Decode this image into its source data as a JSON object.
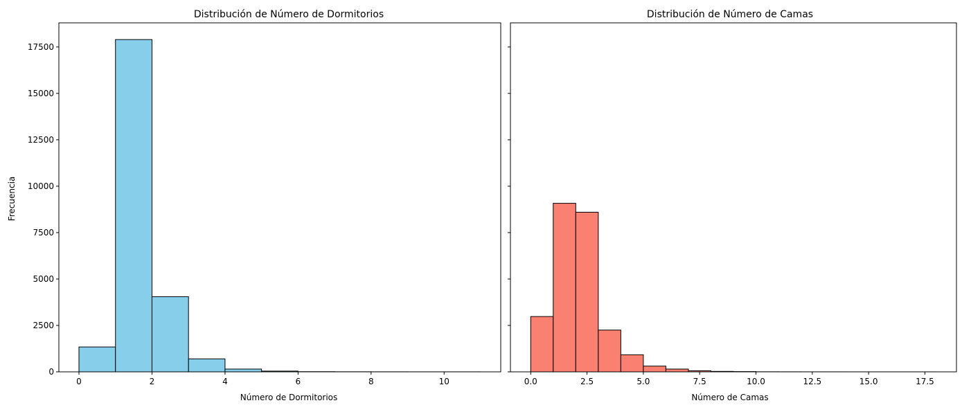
{
  "chart_data": [
    {
      "type": "bar",
      "title": "Distribución de Número de Dormitorios",
      "xlabel": "Número de Dormitorios",
      "ylabel": "Frecuencia",
      "color": "#87CEEB",
      "edge_color": "#000000",
      "xlim": [
        -0.55,
        11.55
      ],
      "ylim": [
        0,
        18800
      ],
      "xticks": [
        0,
        2,
        4,
        6,
        8,
        10
      ],
      "xtick_labels": [
        "0",
        "2",
        "4",
        "6",
        "8",
        "10"
      ],
      "yticks": [
        0,
        2500,
        5000,
        7500,
        10000,
        12500,
        15000,
        17500
      ],
      "ytick_labels": [
        "0",
        "2500",
        "5000",
        "7500",
        "10000",
        "12500",
        "15000",
        "17500"
      ],
      "bins": [
        {
          "x0": 0,
          "x1": 1,
          "count": 1340
        },
        {
          "x0": 1,
          "x1": 2,
          "count": 17900
        },
        {
          "x0": 2,
          "x1": 3,
          "count": 4050
        },
        {
          "x0": 3,
          "x1": 4,
          "count": 700
        },
        {
          "x0": 4,
          "x1": 5,
          "count": 150
        },
        {
          "x0": 5,
          "x1": 6,
          "count": 40
        },
        {
          "x0": 6,
          "x1": 7,
          "count": 10
        },
        {
          "x0": 7,
          "x1": 8,
          "count": 5
        },
        {
          "x0": 8,
          "x1": 9,
          "count": 3
        },
        {
          "x0": 9,
          "x1": 10,
          "count": 2
        },
        {
          "x0": 10,
          "x1": 11,
          "count": 2
        }
      ]
    },
    {
      "type": "bar",
      "title": "Distribución de Número de Camas",
      "xlabel": "Número de Camas",
      "ylabel": "",
      "color": "#FA8072",
      "edge_color": "#000000",
      "xlim": [
        -0.9,
        18.9
      ],
      "ylim": [
        0,
        18800
      ],
      "xticks": [
        0,
        2.5,
        5,
        7.5,
        10,
        12.5,
        15,
        17.5
      ],
      "xtick_labels": [
        "0.0",
        "2.5",
        "5.0",
        "7.5",
        "10.0",
        "12.5",
        "15.0",
        "17.5"
      ],
      "yticks": [
        0,
        2500,
        5000,
        7500,
        10000,
        12500,
        15000,
        17500
      ],
      "ytick_labels": [],
      "bins": [
        {
          "x0": 0,
          "x1": 1,
          "count": 2980
        },
        {
          "x0": 1,
          "x1": 2,
          "count": 9080
        },
        {
          "x0": 2,
          "x1": 3,
          "count": 8600
        },
        {
          "x0": 3,
          "x1": 4,
          "count": 2250
        },
        {
          "x0": 4,
          "x1": 5,
          "count": 920
        },
        {
          "x0": 5,
          "x1": 6,
          "count": 310
        },
        {
          "x0": 6,
          "x1": 7,
          "count": 150
        },
        {
          "x0": 7,
          "x1": 8,
          "count": 60
        },
        {
          "x0": 8,
          "x1": 9,
          "count": 25
        },
        {
          "x0": 9,
          "x1": 10,
          "count": 15
        },
        {
          "x0": 10,
          "x1": 11,
          "count": 5
        },
        {
          "x0": 11,
          "x1": 12,
          "count": 3
        },
        {
          "x0": 12,
          "x1": 13,
          "count": 2
        },
        {
          "x0": 13,
          "x1": 14,
          "count": 2
        },
        {
          "x0": 14,
          "x1": 15,
          "count": 1
        },
        {
          "x0": 15,
          "x1": 16,
          "count": 1
        },
        {
          "x0": 16,
          "x1": 17,
          "count": 1
        },
        {
          "x0": 17,
          "x1": 18,
          "count": 1
        }
      ]
    }
  ]
}
